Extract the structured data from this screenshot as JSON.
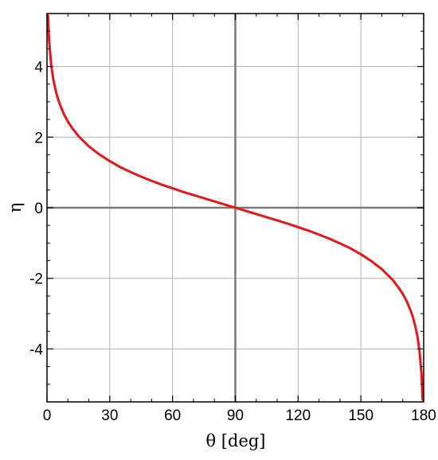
{
  "chart_data": {
    "type": "line",
    "title": "",
    "xlabel": "θ [deg]",
    "ylabel": "η",
    "xlim": [
      0,
      180
    ],
    "ylim": [
      -5.5,
      5.5
    ],
    "x_ticks": [
      0,
      30,
      60,
      90,
      120,
      150,
      180
    ],
    "y_ticks": [
      -4,
      -2,
      0,
      2,
      4
    ],
    "x_tick_labels": [
      "0",
      "30",
      "60",
      "90",
      "120",
      "150",
      "180"
    ],
    "y_tick_labels": [
      "-4",
      "-2",
      "0",
      "2",
      "4"
    ],
    "grid": true,
    "legend": "none",
    "series": [
      {
        "color": "#e8161b",
        "x": [
          0.5,
          1,
          2,
          3,
          4,
          5,
          6,
          8,
          10,
          12,
          15,
          20,
          25,
          30,
          35,
          40,
          45,
          50,
          55,
          60,
          65,
          70,
          75,
          80,
          85,
          90,
          95,
          100,
          105,
          110,
          115,
          120,
          125,
          130,
          135,
          140,
          145,
          150,
          155,
          160,
          165,
          168,
          170,
          172,
          174,
          175,
          176,
          177,
          178,
          179,
          179.5
        ],
        "y": [
          5.44,
          4.74,
          4.05,
          3.64,
          3.36,
          3.13,
          2.95,
          2.66,
          2.44,
          2.26,
          2.03,
          1.74,
          1.51,
          1.32,
          1.15,
          1.01,
          0.88,
          0.76,
          0.65,
          0.55,
          0.45,
          0.36,
          0.27,
          0.18,
          0.09,
          0.0,
          -0.09,
          -0.18,
          -0.27,
          -0.36,
          -0.45,
          -0.55,
          -0.65,
          -0.76,
          -0.88,
          -1.01,
          -1.15,
          -1.32,
          -1.51,
          -1.74,
          -2.03,
          -2.26,
          -2.44,
          -2.66,
          -2.95,
          -3.13,
          -3.36,
          -3.64,
          -4.05,
          -4.74,
          -5.44
        ]
      }
    ],
    "colors": {
      "curve": "#e8161b",
      "grid": "#b4b4b4",
      "zero_lines": "#7a7a7a",
      "frame": "#000000"
    }
  }
}
